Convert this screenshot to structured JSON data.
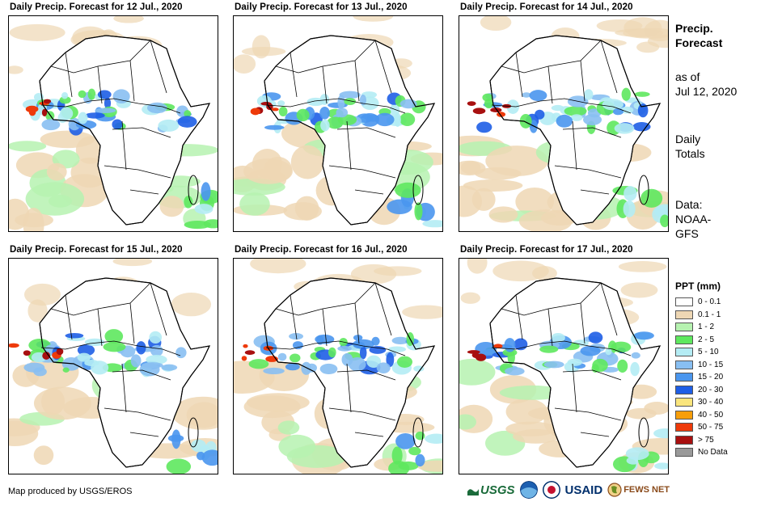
{
  "panels": [
    {
      "title": "Daily Precip. Forecast for 12 Jul., 2020"
    },
    {
      "title": "Daily Precip. Forecast for 13 Jul., 2020"
    },
    {
      "title": "Daily Precip. Forecast for 14 Jul., 2020"
    },
    {
      "title": "Daily Precip. Forecast for 15 Jul., 2020"
    },
    {
      "title": "Daily Precip. Forecast for 16 Jul., 2020"
    },
    {
      "title": "Daily Precip. Forecast for 17 Jul., 2020"
    }
  ],
  "sidebar": {
    "heading_line1": "Precip.",
    "heading_line2": "Forecast",
    "asof_line1": "as of",
    "asof_line2": "Jul 12, 2020",
    "totals_line1": "Daily",
    "totals_line2": "Totals",
    "data_line1": "Data:",
    "data_line2": "NOAA-",
    "data_line3": "GFS"
  },
  "legend": {
    "title": "PPT (mm)",
    "items": [
      {
        "label": "0 - 0.1",
        "color": "#ffffff"
      },
      {
        "label": "0.1 - 1",
        "color": "#eed7b4"
      },
      {
        "label": "1 - 2",
        "color": "#b6f2b0"
      },
      {
        "label": "2 - 5",
        "color": "#5ee85e"
      },
      {
        "label": "5 - 10",
        "color": "#b4ecf4"
      },
      {
        "label": "10 - 15",
        "color": "#88bff2"
      },
      {
        "label": "15 - 20",
        "color": "#4a96ee"
      },
      {
        "label": "20 - 30",
        "color": "#1e5ee6"
      },
      {
        "label": "30 - 40",
        "color": "#fae57c"
      },
      {
        "label": "40 - 50",
        "color": "#f79e0a"
      },
      {
        "label": "50 - 75",
        "color": "#ee3a0a"
      },
      {
        "label": "> 75",
        "color": "#a81010"
      },
      {
        "label": "No Data",
        "color": "#999999"
      }
    ]
  },
  "footer": {
    "credit": "Map produced by USGS/EROS",
    "logo_usgs": "USGS",
    "logo_usaid": "USAID",
    "logo_fews": "FEWS NET"
  }
}
